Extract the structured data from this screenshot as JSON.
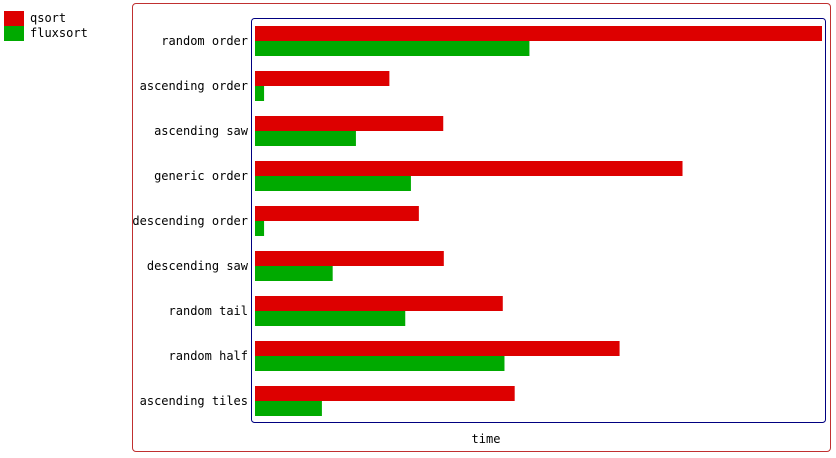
{
  "chart_data": {
    "type": "bar",
    "orientation": "horizontal",
    "categories": [
      "random order",
      "ascending order",
      "ascending saw",
      "generic order",
      "descending order",
      "descending saw",
      "random tail",
      "random half",
      "ascending tiles"
    ],
    "series": [
      {
        "name": "qsort",
        "color": "#dd0000",
        "values": [
          1.0,
          0.237,
          0.332,
          0.754,
          0.289,
          0.333,
          0.437,
          0.643,
          0.458
        ]
      },
      {
        "name": "fluxsort",
        "color": "#00aa00",
        "values": [
          0.484,
          0.016,
          0.178,
          0.275,
          0.016,
          0.137,
          0.265,
          0.44,
          0.118
        ]
      }
    ],
    "title": "",
    "xlabel": "time",
    "ylabel": "",
    "xlim": [
      0,
      1.0
    ],
    "grid": false,
    "legend_position": "top-left-outside"
  }
}
